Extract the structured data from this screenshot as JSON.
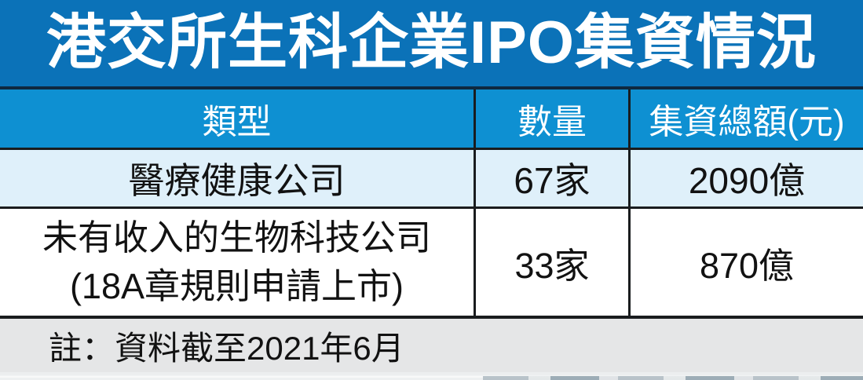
{
  "title": "港交所生科企業IPO集資情況",
  "table": {
    "columns": [
      {
        "label": "類型"
      },
      {
        "label": "數量"
      },
      {
        "label": "集資總額(元)"
      }
    ],
    "rows": [
      {
        "type_lines": [
          "醫療健康公司"
        ],
        "count": "67家",
        "total": "2090億"
      },
      {
        "type_lines": [
          "未有收入的生物科技公司",
          "(18A章規則申請上市)"
        ],
        "count": "33家",
        "total": "870億"
      }
    ]
  },
  "note": "註：資料截至2021年6月",
  "colors": {
    "title_bg": "#0b72b8",
    "header_bg": "#0e90d2",
    "row_highlight_bg": "#dff0fa",
    "row_bg": "#ffffff",
    "note_bg": "#e5e6e7",
    "border": "#191c1e",
    "title_separator": "#0f2840",
    "header_text": "#ffffff",
    "body_text": "#121212"
  },
  "chart_data": {
    "type": "table",
    "title": "港交所生科企業IPO集資情況",
    "columns": [
      "類型",
      "數量",
      "集資總額(元)"
    ],
    "rows": [
      [
        "醫療健康公司",
        "67家",
        "2090億"
      ],
      [
        "未有收入的生物科技公司 (18A章規則申請上市)",
        "33家",
        "870億"
      ]
    ],
    "values": [
      {
        "category": "醫療健康公司",
        "count": 67,
        "total_hkd_billion": 2090
      },
      {
        "category": "未有收入的生物科技公司(18A章規則申請上市)",
        "count": 33,
        "total_hkd_billion": 870
      }
    ],
    "note": "註：資料截至2021年6月"
  }
}
